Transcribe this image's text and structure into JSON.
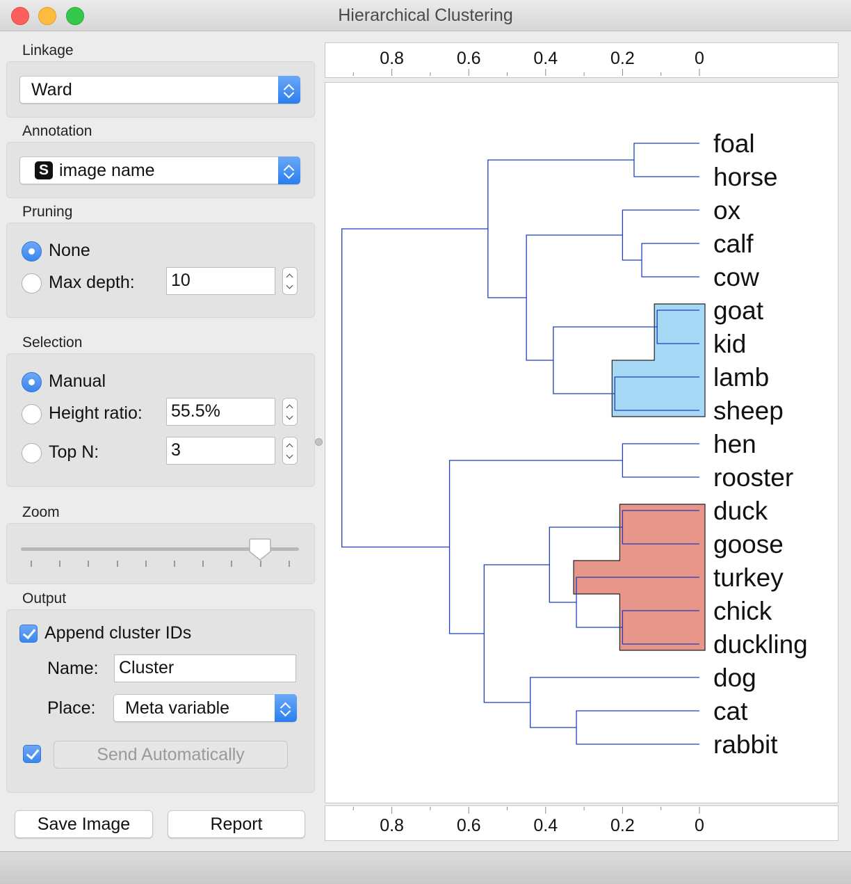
{
  "window": {
    "title": "Hierarchical Clustering"
  },
  "linkage": {
    "label": "Linkage",
    "value": "Ward"
  },
  "annotation": {
    "label": "Annotation",
    "type_badge": "S",
    "value": "image name"
  },
  "pruning": {
    "label": "Pruning",
    "option_none": "None",
    "option_max_depth": "Max depth:",
    "max_depth_value": "10",
    "selected": "None"
  },
  "selection": {
    "label": "Selection",
    "option_manual": "Manual",
    "option_height_ratio": "Height ratio:",
    "height_ratio_value": "55.5%",
    "option_top_n": "Top N:",
    "top_n_value": "3",
    "selected": "Manual"
  },
  "zoom": {
    "label": "Zoom",
    "level_fraction": 0.86,
    "tick_count": 10
  },
  "output": {
    "label": "Output",
    "append_label": "Append cluster IDs",
    "append_checked": true,
    "name_label": "Name:",
    "name_value": "Cluster",
    "place_label": "Place:",
    "place_value": "Meta variable",
    "auto_send_checked": true,
    "send_label": "Send Automatically"
  },
  "buttons": {
    "save_image": "Save Image",
    "report": "Report"
  },
  "colors": {
    "link": "#1f3fbf",
    "selection_blue": "#a6d8f5",
    "selection_red": "#e8958a"
  },
  "chart_data": {
    "type": "dendrogram",
    "axis_ticks": [
      0.8,
      0.6,
      0.4,
      0.2,
      0
    ],
    "axis_tick_labels": [
      "0.8",
      "0.6",
      "0.4",
      "0.2",
      "0"
    ],
    "leaves": [
      "foal",
      "horse",
      "ox",
      "calf",
      "cow",
      "goat",
      "kid",
      "lamb",
      "sheep",
      "hen",
      "rooster",
      "duck",
      "goose",
      "turkey",
      "chick",
      "duckling",
      "dog",
      "cat",
      "rabbit"
    ],
    "merges": [
      {
        "id": "n1",
        "children": [
          "foal",
          "horse"
        ],
        "height": 0.17
      },
      {
        "id": "n2",
        "children": [
          "calf",
          "cow"
        ],
        "height": 0.15
      },
      {
        "id": "n3",
        "children": [
          "ox",
          "n2"
        ],
        "height": 0.2
      },
      {
        "id": "n4",
        "children": [
          "goat",
          "kid"
        ],
        "height": 0.11
      },
      {
        "id": "n5",
        "children": [
          "lamb",
          "sheep"
        ],
        "height": 0.22
      },
      {
        "id": "n6",
        "children": [
          "n4",
          "n5"
        ],
        "height": 0.38
      },
      {
        "id": "n7",
        "children": [
          "n3",
          "n6"
        ],
        "height": 0.45
      },
      {
        "id": "n8",
        "children": [
          "n1",
          "n7"
        ],
        "height": 0.55
      },
      {
        "id": "n9",
        "children": [
          "hen",
          "rooster"
        ],
        "height": 0.2
      },
      {
        "id": "n10",
        "children": [
          "duck",
          "goose"
        ],
        "height": 0.2
      },
      {
        "id": "n11",
        "children": [
          "chick",
          "duckling"
        ],
        "height": 0.2
      },
      {
        "id": "n12",
        "children": [
          "turkey",
          "n11"
        ],
        "height": 0.32
      },
      {
        "id": "n13",
        "children": [
          "n10",
          "n12"
        ],
        "height": 0.39
      },
      {
        "id": "n14",
        "children": [
          "cat",
          "rabbit"
        ],
        "height": 0.32
      },
      {
        "id": "n15",
        "children": [
          "dog",
          "n14"
        ],
        "height": 0.44
      },
      {
        "id": "n16",
        "children": [
          "n13",
          "n15"
        ],
        "height": 0.56
      },
      {
        "id": "n17",
        "children": [
          "n9",
          "n16"
        ],
        "height": 0.65
      },
      {
        "id": "n18",
        "children": [
          "n8",
          "n17"
        ],
        "height": 0.93
      }
    ],
    "selected_clusters": [
      {
        "node": "n6",
        "color": "#a6d8f5"
      },
      {
        "node": "n13",
        "color": "#e8958a"
      }
    ]
  }
}
